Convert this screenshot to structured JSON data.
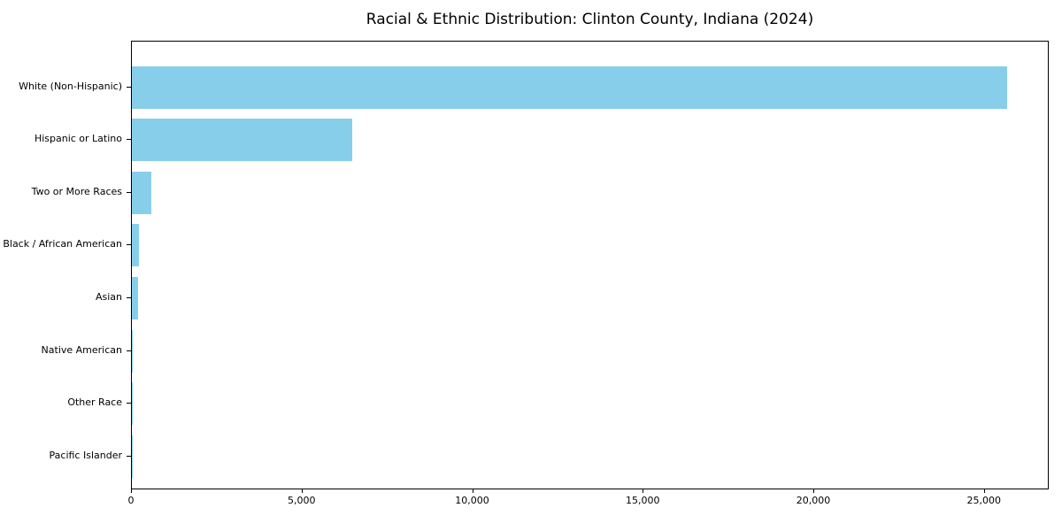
{
  "chart_data": {
    "type": "bar",
    "orientation": "horizontal",
    "title": "Racial & Ethnic Distribution: Clinton County, Indiana (2024)",
    "categories": [
      "White (Non-Hispanic)",
      "Hispanic or Latino",
      "Two or More Races",
      "Black / African American",
      "Asian",
      "Native American",
      "Other Race",
      "Pacific Islander"
    ],
    "values": [
      25650,
      6450,
      575,
      210,
      175,
      20,
      12,
      5
    ],
    "xlabel": "",
    "ylabel": "",
    "xlim": [
      0,
      26900
    ],
    "xticks": [
      0,
      5000,
      10000,
      15000,
      20000,
      25000
    ],
    "xtick_labels": [
      "0",
      "5,000",
      "10,000",
      "15,000",
      "20,000",
      "25,000"
    ],
    "bar_color": "#87CEEB",
    "background_color": "#ffffff",
    "text_color": "#000000",
    "grid": false,
    "legend": null
  }
}
